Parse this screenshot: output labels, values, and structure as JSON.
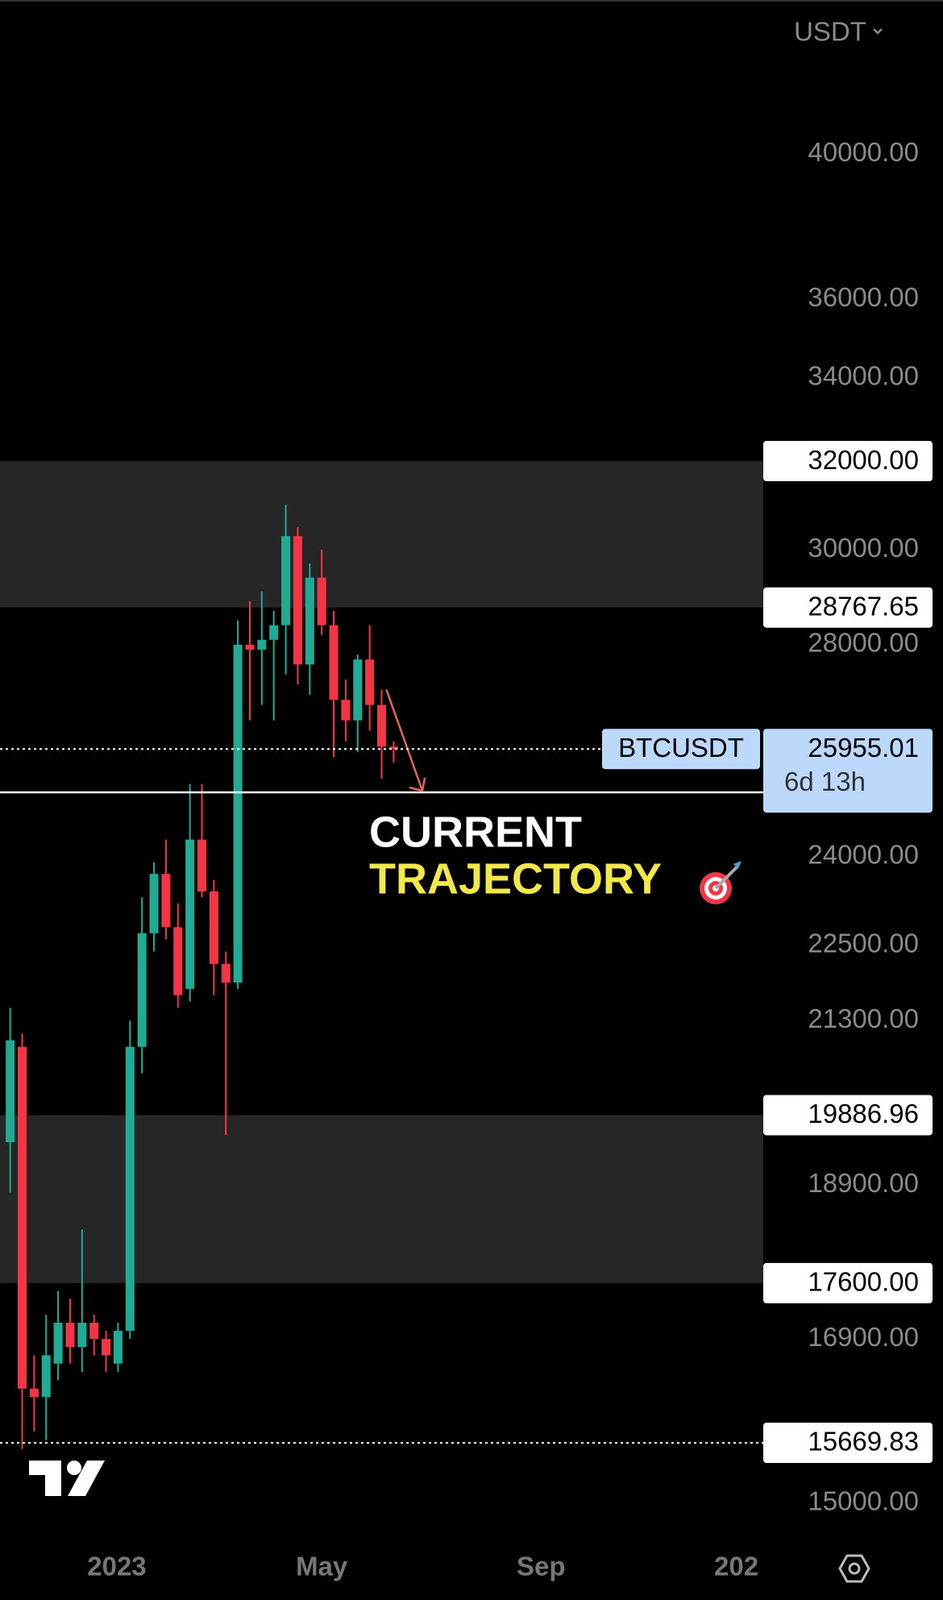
{
  "chart_data": {
    "type": "candlestick",
    "currency": "USDT",
    "log_scale": true,
    "xlim": [
      -0.85,
      62.85
    ],
    "ylim": [
      14700,
      44750
    ],
    "yticks": [
      {
        "value": 40000,
        "label": "40000.00"
      },
      {
        "value": 36000,
        "label": "36000.00"
      },
      {
        "value": 34000,
        "label": "34000.00"
      },
      {
        "value": 30000,
        "label": "30000.00"
      },
      {
        "value": 28000,
        "label": "28000.00"
      },
      {
        "value": 24000,
        "label": "24000.00"
      },
      {
        "value": 22500,
        "label": "22500.00"
      },
      {
        "value": 21300,
        "label": "21300.00"
      },
      {
        "value": 18900,
        "label": "18900.00"
      },
      {
        "value": 16900,
        "label": "16900.00"
      },
      {
        "value": 15000,
        "label": "15000.00"
      }
    ],
    "xticks": [
      {
        "value": 8.9,
        "label": "2023"
      },
      {
        "value": 26,
        "label": "May"
      },
      {
        "value": 44.3,
        "label": "Sep"
      },
      {
        "value": 60.6,
        "label": "202"
      }
    ],
    "open": [
      19500,
      20900,
      16300,
      16200,
      16600,
      17100,
      16800,
      17100,
      16900,
      16600,
      17000,
      20900,
      22700,
      23700,
      22800,
      21800,
      24300,
      23400,
      22200,
      21900,
      28000,
      27900,
      28100,
      28400,
      30300,
      27600,
      29400,
      28400,
      26900,
      26500,
      27700,
      26800,
      26000
    ],
    "high": [
      21500,
      21100,
      16700,
      17200,
      17500,
      17400,
      18300,
      17200,
      17000,
      17100,
      21300,
      23300,
      23900,
      24300,
      23200,
      25300,
      25300,
      23600,
      22400,
      28500,
      28900,
      29100,
      28700,
      31000,
      30500,
      29700,
      30000,
      28700,
      27300,
      27800,
      28400,
      27100,
      26100
    ],
    "low": [
      18800,
      15600,
      15800,
      15700,
      16400,
      16600,
      16500,
      16700,
      16500,
      16500,
      16900,
      20500,
      22400,
      22600,
      21500,
      21600,
      23300,
      21700,
      19600,
      21800,
      26500,
      26800,
      26500,
      27400,
      27200,
      27000,
      28200,
      25800,
      26100,
      25900,
      26300,
      25400,
      25700
    ],
    "close": [
      21000,
      16300,
      16200,
      16700,
      17100,
      16800,
      17100,
      16900,
      16700,
      17000,
      20900,
      22700,
      23700,
      22800,
      21700,
      24300,
      23400,
      22200,
      21900,
      28000,
      27900,
      28100,
      28400,
      30300,
      27600,
      29400,
      28400,
      26900,
      26500,
      27700,
      26800,
      26000,
      25955.01
    ],
    "up_color": "#22ab94",
    "down_color": "#f23645",
    "levels": [
      {
        "value": 32000,
        "label": "32000.00"
      },
      28767.65,
      19886.96,
      {
        "value": 17600,
        "label": "17600.00"
      },
      15669.83
    ],
    "symbol": "BTCUSDT",
    "countdown": "6d 13h",
    "support_line": 25150,
    "annotation": [
      "CURRENT",
      "TRAJECTORY"
    ]
  }
}
